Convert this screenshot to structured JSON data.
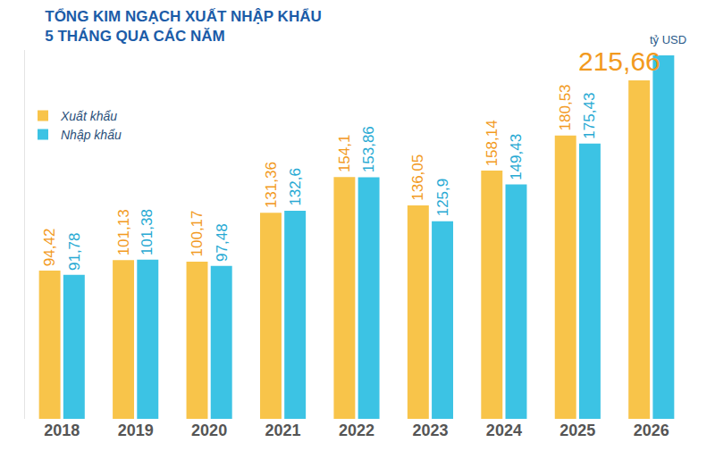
{
  "chart_data": {
    "type": "bar",
    "title": "TỔNG KIM NGẠCH XUẤT NHẬP KHẨU\n5 THÁNG QUA CÁC NĂM",
    "y_label": "tỷ USD",
    "categories": [
      "2018",
      "2019",
      "2020",
      "2021",
      "2022",
      "2023",
      "2024",
      "2025",
      "2026"
    ],
    "series": [
      {
        "name": "Xuất khẩu",
        "color": "#f8c44a",
        "values": [
          94.42,
          101.13,
          100.17,
          131.36,
          154.1,
          136.05,
          158.14,
          180.53,
          215.66
        ],
        "value_labels": [
          "94,42",
          "101,13",
          "100,17",
          "131,36",
          "154,1",
          "136,05",
          "158,14",
          "180,53",
          "215,66"
        ]
      },
      {
        "name": "Nhập khẩu",
        "color": "#3cc3e4",
        "values": [
          91.78,
          101.38,
          97.48,
          132.6,
          153.86,
          125.9,
          149.43,
          175.43,
          231.6
        ],
        "value_labels": [
          "91,78",
          "101,38",
          "97,48",
          "132,6",
          "153,86",
          "125,9",
          "149,43",
          "175,43",
          null
        ]
      }
    ],
    "ylim": [
      0,
      235
    ],
    "yticks": [],
    "tick_labels": "x",
    "data_labels": true,
    "legend": "upper left"
  }
}
